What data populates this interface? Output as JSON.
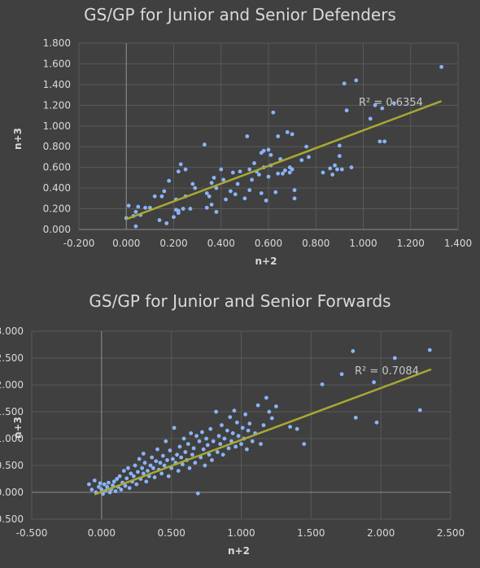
{
  "chart_data": [
    {
      "type": "scatter",
      "title": "GS/GP for Junior and Senior Defenders",
      "xlabel": "n+2",
      "ylabel": "n+3",
      "xlim": [
        -0.2,
        1.4
      ],
      "ylim": [
        0,
        1.8
      ],
      "x_ticks": [
        "-0.200",
        "0.000",
        "0.200",
        "0.400",
        "0.600",
        "0.800",
        "1.000",
        "1.200",
        "1.400"
      ],
      "y_ticks": [
        "0.000",
        "0.200",
        "0.400",
        "0.600",
        "0.800",
        "1.000",
        "1.200",
        "1.400",
        "1.600",
        "1.800"
      ],
      "grid": true,
      "point_color": "#8ab4f8",
      "trendline": {
        "type": "linear",
        "x": [
          0.0,
          1.33
        ],
        "y": [
          0.1,
          1.24
        ],
        "color": "#a8a832",
        "label": "R² = 0.6354"
      },
      "series": [
        {
          "points": [
            [
              0.0,
              0.11
            ],
            [
              0.01,
              0.23
            ],
            [
              0.03,
              0.13
            ],
            [
              0.04,
              0.03
            ],
            [
              0.04,
              0.17
            ],
            [
              0.05,
              0.22
            ],
            [
              0.06,
              0.14
            ],
            [
              0.08,
              0.21
            ],
            [
              0.1,
              0.21
            ],
            [
              0.12,
              0.32
            ],
            [
              0.14,
              0.09
            ],
            [
              0.15,
              0.32
            ],
            [
              0.16,
              0.37
            ],
            [
              0.17,
              0.06
            ],
            [
              0.18,
              0.47
            ],
            [
              0.2,
              0.12
            ],
            [
              0.21,
              0.19
            ],
            [
              0.21,
              0.29
            ],
            [
              0.22,
              0.18
            ],
            [
              0.22,
              0.16
            ],
            [
              0.22,
              0.56
            ],
            [
              0.23,
              0.63
            ],
            [
              0.24,
              0.2
            ],
            [
              0.25,
              0.32
            ],
            [
              0.25,
              0.58
            ],
            [
              0.27,
              0.2
            ],
            [
              0.28,
              0.44
            ],
            [
              0.29,
              0.4
            ],
            [
              0.33,
              0.82
            ],
            [
              0.34,
              0.21
            ],
            [
              0.34,
              0.35
            ],
            [
              0.35,
              0.32
            ],
            [
              0.36,
              0.24
            ],
            [
              0.36,
              0.45
            ],
            [
              0.37,
              0.5
            ],
            [
              0.38,
              0.17
            ],
            [
              0.38,
              0.4
            ],
            [
              0.4,
              0.58
            ],
            [
              0.41,
              0.48
            ],
            [
              0.42,
              0.29
            ],
            [
              0.44,
              0.37
            ],
            [
              0.45,
              0.55
            ],
            [
              0.46,
              0.34
            ],
            [
              0.47,
              0.44
            ],
            [
              0.48,
              0.56
            ],
            [
              0.5,
              0.3
            ],
            [
              0.51,
              0.9
            ],
            [
              0.52,
              0.38
            ],
            [
              0.52,
              0.58
            ],
            [
              0.53,
              0.48
            ],
            [
              0.54,
              0.64
            ],
            [
              0.55,
              0.56
            ],
            [
              0.56,
              0.53
            ],
            [
              0.57,
              0.35
            ],
            [
              0.57,
              0.74
            ],
            [
              0.58,
              0.6
            ],
            [
              0.58,
              0.76
            ],
            [
              0.59,
              0.28
            ],
            [
              0.6,
              0.51
            ],
            [
              0.6,
              0.77
            ],
            [
              0.61,
              0.62
            ],
            [
              0.61,
              0.72
            ],
            [
              0.62,
              1.13
            ],
            [
              0.63,
              0.36
            ],
            [
              0.64,
              0.54
            ],
            [
              0.64,
              0.9
            ],
            [
              0.65,
              0.68
            ],
            [
              0.66,
              0.54
            ],
            [
              0.67,
              0.57
            ],
            [
              0.68,
              0.94
            ],
            [
              0.69,
              0.6
            ],
            [
              0.69,
              0.55
            ],
            [
              0.7,
              0.92
            ],
            [
              0.7,
              0.58
            ],
            [
              0.71,
              0.38
            ],
            [
              0.71,
              0.3
            ],
            [
              0.74,
              0.67
            ],
            [
              0.76,
              0.8
            ],
            [
              0.77,
              0.7
            ],
            [
              0.83,
              0.55
            ],
            [
              0.86,
              0.59
            ],
            [
              0.87,
              0.53
            ],
            [
              0.88,
              0.62
            ],
            [
              0.89,
              0.58
            ],
            [
              0.9,
              0.71
            ],
            [
              0.9,
              0.81
            ],
            [
              0.91,
              0.58
            ],
            [
              0.92,
              1.41
            ],
            [
              0.93,
              1.15
            ],
            [
              0.95,
              0.6
            ],
            [
              0.97,
              1.44
            ],
            [
              1.03,
              1.07
            ],
            [
              1.05,
              1.2
            ],
            [
              1.07,
              0.85
            ],
            [
              1.08,
              1.17
            ],
            [
              1.09,
              0.85
            ],
            [
              1.13,
              1.22
            ],
            [
              1.33,
              1.57
            ]
          ]
        }
      ]
    },
    {
      "type": "scatter",
      "title": "GS/GP for Junior and Senior Forwards",
      "xlabel": "n+2",
      "ylabel": "n+3",
      "xlim": [
        -0.5,
        2.5
      ],
      "ylim": [
        -0.5,
        3.0
      ],
      "x_ticks": [
        "-0.500",
        "0.000",
        "0.500",
        "1.000",
        "1.500",
        "2.000",
        "2.500"
      ],
      "y_ticks": [
        "-0.500",
        "0.000",
        "0.500",
        "1.000",
        "1.500",
        "2.000",
        "2.500",
        "3.000"
      ],
      "grid": true,
      "point_color": "#8ab4f8",
      "trendline": {
        "type": "linear",
        "x": [
          -0.05,
          2.36
        ],
        "y": [
          -0.04,
          2.29
        ],
        "color": "#a8a832",
        "label": "R² = 0.7084"
      },
      "series": [
        {
          "points": [
            [
              -0.09,
              0.15
            ],
            [
              -0.07,
              0.05
            ],
            [
              -0.05,
              0.22
            ],
            [
              -0.04,
              0.0
            ],
            [
              -0.02,
              0.1
            ],
            [
              -0.01,
              0.17
            ],
            [
              0.0,
              0.05
            ],
            [
              0.01,
              -0.03
            ],
            [
              0.02,
              0.15
            ],
            [
              0.03,
              0.03
            ],
            [
              0.04,
              0.1
            ],
            [
              0.05,
              0.18
            ],
            [
              0.06,
              0.0
            ],
            [
              0.07,
              0.06
            ],
            [
              0.08,
              0.13
            ],
            [
              0.09,
              0.2
            ],
            [
              0.1,
              0.02
            ],
            [
              0.11,
              0.25
            ],
            [
              0.12,
              0.1
            ],
            [
              0.13,
              0.3
            ],
            [
              0.14,
              0.05
            ],
            [
              0.15,
              0.18
            ],
            [
              0.16,
              0.4
            ],
            [
              0.17,
              0.12
            ],
            [
              0.18,
              0.26
            ],
            [
              0.19,
              0.45
            ],
            [
              0.2,
              0.08
            ],
            [
              0.21,
              0.35
            ],
            [
              0.22,
              0.2
            ],
            [
              0.23,
              0.3
            ],
            [
              0.24,
              0.5
            ],
            [
              0.25,
              0.15
            ],
            [
              0.26,
              0.38
            ],
            [
              0.27,
              0.62
            ],
            [
              0.28,
              0.25
            ],
            [
              0.29,
              0.45
            ],
            [
              0.3,
              0.35
            ],
            [
              0.3,
              0.72
            ],
            [
              0.31,
              0.55
            ],
            [
              0.32,
              0.2
            ],
            [
              0.33,
              0.4
            ],
            [
              0.34,
              0.3
            ],
            [
              0.35,
              0.5
            ],
            [
              0.36,
              0.65
            ],
            [
              0.37,
              0.45
            ],
            [
              0.38,
              0.28
            ],
            [
              0.39,
              0.58
            ],
            [
              0.4,
              0.8
            ],
            [
              0.41,
              0.42
            ],
            [
              0.42,
              0.55
            ],
            [
              0.43,
              0.35
            ],
            [
              0.44,
              0.68
            ],
            [
              0.45,
              0.5
            ],
            [
              0.46,
              0.95
            ],
            [
              0.47,
              0.6
            ],
            [
              0.48,
              0.3
            ],
            [
              0.49,
              0.78
            ],
            [
              0.5,
              0.45
            ],
            [
              0.51,
              0.62
            ],
            [
              0.52,
              1.2
            ],
            [
              0.53,
              0.55
            ],
            [
              0.54,
              0.7
            ],
            [
              0.55,
              0.4
            ],
            [
              0.56,
              0.85
            ],
            [
              0.57,
              0.65
            ],
            [
              0.58,
              0.52
            ],
            [
              0.59,
              1.0
            ],
            [
              0.6,
              0.75
            ],
            [
              0.61,
              0.6
            ],
            [
              0.62,
              0.9
            ],
            [
              0.63,
              0.45
            ],
            [
              0.64,
              1.1
            ],
            [
              0.65,
              0.7
            ],
            [
              0.66,
              0.82
            ],
            [
              0.67,
              0.55
            ],
            [
              0.68,
              1.05
            ],
            [
              0.69,
              -0.02
            ],
            [
              0.7,
              0.95
            ],
            [
              0.71,
              0.65
            ],
            [
              0.72,
              1.12
            ],
            [
              0.73,
              0.8
            ],
            [
              0.74,
              0.5
            ],
            [
              0.75,
              1.0
            ],
            [
              0.76,
              0.88
            ],
            [
              0.77,
              0.7
            ],
            [
              0.78,
              1.18
            ],
            [
              0.79,
              0.6
            ],
            [
              0.8,
              0.95
            ],
            [
              0.82,
              1.5
            ],
            [
              0.83,
              0.75
            ],
            [
              0.84,
              1.05
            ],
            [
              0.85,
              0.9
            ],
            [
              0.86,
              1.25
            ],
            [
              0.87,
              0.7
            ],
            [
              0.88,
              1.0
            ],
            [
              0.9,
              1.15
            ],
            [
              0.91,
              0.82
            ],
            [
              0.92,
              1.4
            ],
            [
              0.93,
              0.95
            ],
            [
              0.94,
              1.1
            ],
            [
              0.95,
              1.52
            ],
            [
              0.96,
              0.85
            ],
            [
              0.97,
              1.3
            ],
            [
              0.98,
              1.05
            ],
            [
              1.0,
              0.9
            ],
            [
              1.01,
              1.2
            ],
            [
              1.02,
              1.0
            ],
            [
              1.03,
              1.45
            ],
            [
              1.04,
              0.8
            ],
            [
              1.05,
              1.15
            ],
            [
              1.06,
              1.28
            ],
            [
              1.08,
              0.95
            ],
            [
              1.1,
              1.1
            ],
            [
              1.12,
              1.62
            ],
            [
              1.14,
              0.9
            ],
            [
              1.16,
              1.25
            ],
            [
              1.18,
              1.76
            ],
            [
              1.2,
              1.5
            ],
            [
              1.22,
              1.38
            ],
            [
              1.25,
              1.6
            ],
            [
              1.35,
              1.22
            ],
            [
              1.4,
              1.18
            ],
            [
              1.45,
              0.9
            ],
            [
              1.58,
              2.01
            ],
            [
              1.72,
              2.2
            ],
            [
              1.8,
              2.63
            ],
            [
              1.82,
              1.39
            ],
            [
              1.95,
              2.05
            ],
            [
              1.97,
              1.3
            ],
            [
              2.1,
              2.5
            ],
            [
              2.28,
              1.53
            ],
            [
              2.35,
              2.65
            ]
          ]
        }
      ]
    }
  ]
}
